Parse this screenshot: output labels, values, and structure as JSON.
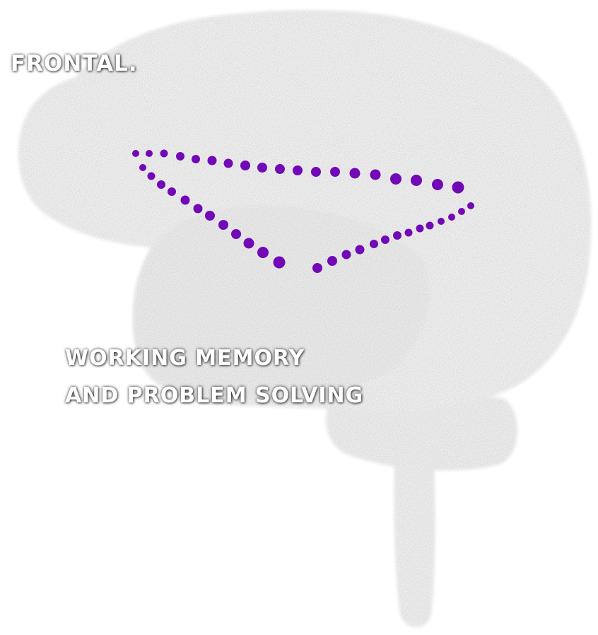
{
  "region_label": "FRONTAL.",
  "function_label_lines": [
    "WORKING MEMORY",
    "AND PROBLEM SOLVING"
  ],
  "colors": {
    "dot_accent": "#7209b7",
    "brain_fill": "#f1f1f1",
    "brain_speckle": "#cfcfcf",
    "caption_text": "#ffffff"
  },
  "icons": {
    "brain": "brain-silhouette-icon",
    "dotted_region": "dotted-triangle-outline"
  }
}
